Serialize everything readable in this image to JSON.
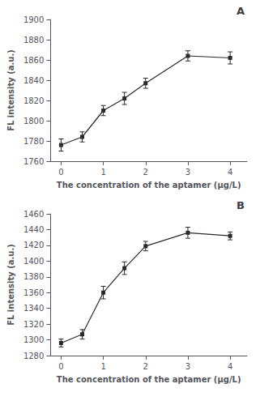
{
  "chart_data": [
    {
      "type": "line",
      "x": [
        0,
        0.5,
        1,
        1.5,
        2,
        3,
        4
      ],
      "values": [
        1776,
        1784,
        1810,
        1822,
        1837,
        1864,
        1862
      ],
      "yerr": [
        6,
        5,
        5,
        6,
        5,
        5,
        6
      ],
      "xlim": [
        -0.25,
        4.4
      ],
      "xticks": [
        0,
        1,
        2,
        3,
        4
      ],
      "ylim": [
        1760,
        1900
      ],
      "yticks": [
        1760,
        1780,
        1800,
        1820,
        1840,
        1860,
        1880,
        1900
      ],
      "xlabel": "The concentration of the aptamer (μg/L)",
      "ylabel": "FL intensity (a.u.)",
      "color": "#2a2a2a",
      "marker": "square",
      "grid": false,
      "annotations": [
        "A"
      ]
    },
    {
      "type": "line",
      "x": [
        0,
        0.5,
        1,
        1.5,
        2,
        3,
        4
      ],
      "values": [
        1296,
        1307,
        1360,
        1391,
        1419,
        1436,
        1432
      ],
      "yerr": [
        5,
        6,
        8,
        8,
        6,
        7,
        5
      ],
      "xlim": [
        -0.25,
        4.4
      ],
      "xticks": [
        0,
        1,
        2,
        3,
        4
      ],
      "ylim": [
        1280,
        1460
      ],
      "yticks": [
        1280,
        1300,
        1320,
        1340,
        1360,
        1380,
        1400,
        1420,
        1440,
        1460
      ],
      "xlabel": "The concentration of the aptamer (μg/L)",
      "ylabel": "FL intensity (a.u.)",
      "color": "#2a2a2a",
      "marker": "square",
      "grid": false,
      "annotations": [
        "B"
      ]
    }
  ]
}
